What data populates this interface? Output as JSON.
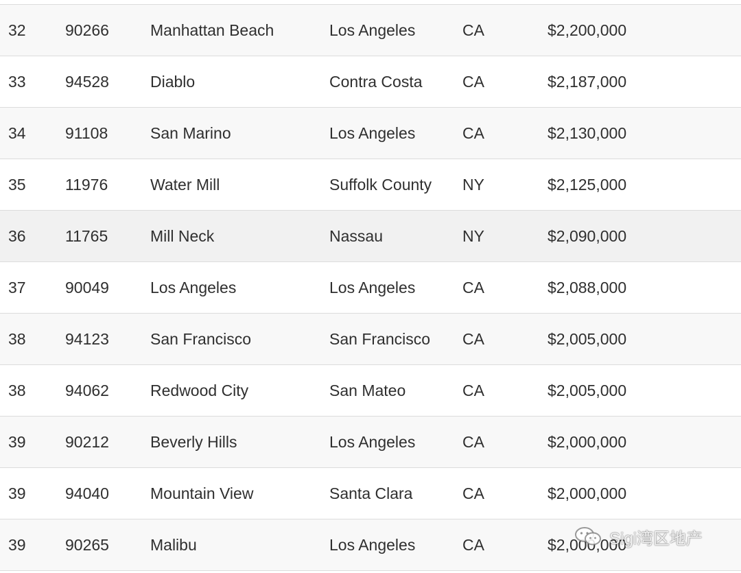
{
  "rows": [
    {
      "rank": "32",
      "zip": "90266",
      "city": "Manhattan Beach",
      "county": "Los Angeles",
      "state": "CA",
      "price": "$2,200,000"
    },
    {
      "rank": "33",
      "zip": "94528",
      "city": "Diablo",
      "county": "Contra Costa",
      "state": "CA",
      "price": "$2,187,000"
    },
    {
      "rank": "34",
      "zip": "91108",
      "city": "San Marino",
      "county": "Los Angeles",
      "state": "CA",
      "price": "$2,130,000"
    },
    {
      "rank": "35",
      "zip": "11976",
      "city": "Water Mill",
      "county": "Suffolk County",
      "state": "NY",
      "price": "$2,125,000"
    },
    {
      "rank": "36",
      "zip": "11765",
      "city": "Mill Neck",
      "county": "Nassau",
      "state": "NY",
      "price": "$2,090,000"
    },
    {
      "rank": "37",
      "zip": "90049",
      "city": "Los Angeles",
      "county": "Los Angeles",
      "state": "CA",
      "price": "$2,088,000"
    },
    {
      "rank": "38",
      "zip": "94123",
      "city": "San Francisco",
      "county": "San Francisco",
      "state": "CA",
      "price": "$2,005,000"
    },
    {
      "rank": "38",
      "zip": "94062",
      "city": "Redwood City",
      "county": "San Mateo",
      "state": "CA",
      "price": "$2,005,000"
    },
    {
      "rank": "39",
      "zip": "90212",
      "city": "Beverly Hills",
      "county": "Los Angeles",
      "state": "CA",
      "price": "$2,000,000"
    },
    {
      "rank": "39",
      "zip": "94040",
      "city": "Mountain View",
      "county": "Santa Clara",
      "state": "CA",
      "price": "$2,000,000"
    },
    {
      "rank": "39",
      "zip": "90265",
      "city": "Malibu",
      "county": "Los Angeles",
      "state": "CA",
      "price": "$2,000,000"
    }
  ],
  "watermark": {
    "text": "Sigi湾区地产",
    "icon": "wechat-icon"
  },
  "colors": {
    "row_odd": "#f8f8f8",
    "row_even": "#ffffff",
    "row_highlight": "#f1f1f1",
    "border": "#dcdcdc",
    "text": "#2f2f2f"
  }
}
